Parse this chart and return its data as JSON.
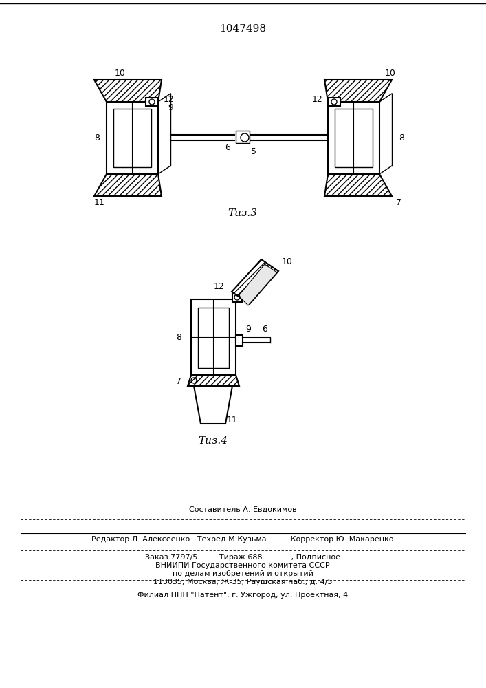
{
  "patent_number": "1047498",
  "fig3_label": "Τиз.3",
  "fig4_label": "Τиз.4",
  "bottom_line1": "Составитель А. Евдокимов",
  "bottom_line2": "Редактор Л. Алексеенко   Техред М.Кузьма          Корректор Ю. Макаренко",
  "bottom_line3": "Заказ 7797/5         Тираж 688            , Подписное",
  "bottom_line4": "ВНИИПИ Государственного комитета СССР",
  "bottom_line5": "по делам изобретений и открытий",
  "bottom_line6": "113035, Москва, Ж-35, Раушская наб., д. 4/5",
  "bottom_line7": "Филиал ППП \"Патент\", г. Ужгород, ул. Проектная, 4",
  "bg_color": "#ffffff",
  "line_color": "#000000"
}
